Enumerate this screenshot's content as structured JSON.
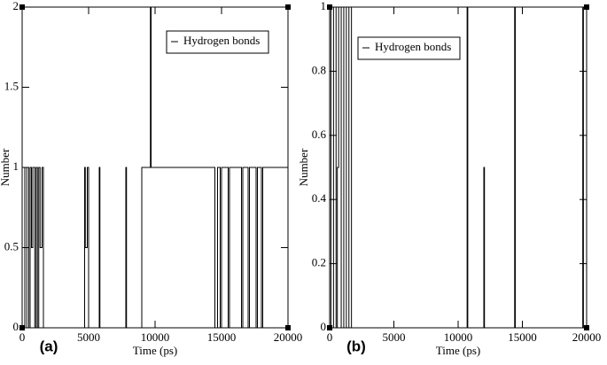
{
  "chart_data": [
    {
      "type": "line",
      "panel_label": "(a)",
      "xlabel": "Time (ps)",
      "ylabel": "Number",
      "x": [
        0,
        0,
        200,
        200,
        350,
        350,
        500,
        500,
        600,
        600,
        700,
        700,
        800,
        800,
        950,
        950,
        1050,
        1050,
        1150,
        1150,
        1250,
        1250,
        1350,
        1350,
        1500,
        1500,
        1600,
        1600,
        4700,
        4700,
        4750,
        4750,
        4900,
        4900,
        5000,
        5000,
        5800,
        5800,
        5850,
        5850,
        7800,
        7800,
        7850,
        7850,
        9000,
        9000,
        9650,
        9650,
        9700,
        9700,
        14500,
        14500,
        14700,
        14700,
        14900,
        14900,
        15000,
        15000,
        15500,
        15500,
        15600,
        15600,
        16500,
        16500,
        16600,
        16600,
        17000,
        17000,
        17100,
        17100,
        17600,
        17600,
        17700,
        17700,
        18000,
        18000,
        18100,
        18100,
        20000
      ],
      "series": [
        {
          "name": "Hydrogen bonds",
          "color": "#000000",
          "values": [
            0,
            1,
            1,
            0,
            0,
            1,
            1,
            0,
            0,
            1,
            1,
            0.5,
            0.5,
            1,
            1,
            0,
            0,
            1,
            1,
            0,
            0,
            1,
            1,
            0.5,
            0.5,
            1,
            1,
            0,
            0,
            1,
            1,
            0.5,
            0.5,
            1,
            1,
            0,
            0,
            1,
            1,
            0,
            0,
            1,
            1,
            0,
            0,
            1,
            1,
            2,
            2,
            1,
            1,
            0,
            0,
            1,
            1,
            0,
            0,
            1,
            1,
            0,
            0,
            1,
            1,
            0,
            0,
            1,
            1,
            0,
            0,
            1,
            1,
            0,
            0,
            1,
            1,
            0,
            0,
            1,
            1
          ]
        }
      ],
      "xlim": [
        0,
        20000
      ],
      "ylim": [
        0,
        2
      ],
      "xticks": [
        0,
        5000,
        10000,
        15000,
        20000
      ],
      "yticks": [
        0,
        0.5,
        1,
        1.5,
        2
      ],
      "legend": "upper right"
    },
    {
      "type": "line",
      "panel_label": "(b)",
      "xlabel": "Time (ps)",
      "ylabel": "Number",
      "x": [
        0,
        0,
        100,
        100,
        300,
        300,
        500,
        500,
        600,
        600,
        700,
        700,
        900,
        900,
        1100,
        1100,
        1300,
        1300,
        1500,
        1500,
        1700,
        1700,
        10700,
        10700,
        10750,
        10750,
        12000,
        12000,
        12050,
        12050,
        14400,
        14400,
        14450,
        14450,
        19700,
        19700,
        19750,
        19750,
        20000
      ],
      "series": [
        {
          "name": "Hydrogen bonds",
          "color": "#000000",
          "values": [
            0,
            1,
            1,
            0,
            0,
            1,
            1,
            0,
            0,
            0.5,
            0.5,
            1,
            1,
            0,
            0,
            1,
            1,
            0,
            0,
            1,
            1,
            0,
            0,
            1,
            1,
            0,
            0,
            0.5,
            0.5,
            0,
            0,
            1,
            1,
            0,
            0,
            1,
            1,
            0,
            0
          ]
        }
      ],
      "xlim": [
        0,
        20000
      ],
      "ylim": [
        0,
        1
      ],
      "xticks": [
        0,
        5000,
        10000,
        15000,
        20000
      ],
      "yticks": [
        0,
        0.2,
        0.4,
        0.6,
        0.8,
        1
      ],
      "legend": "upper left"
    }
  ]
}
